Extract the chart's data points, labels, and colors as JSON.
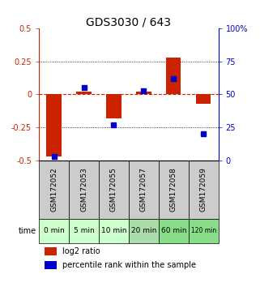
{
  "title": "GDS3030 / 643",
  "samples": [
    "GSM172052",
    "GSM172053",
    "GSM172055",
    "GSM172057",
    "GSM172058",
    "GSM172059"
  ],
  "time_labels": [
    "0 min",
    "5 min",
    "10 min",
    "20 min",
    "60 min",
    "120 min"
  ],
  "log2_ratio": [
    -0.47,
    0.02,
    -0.18,
    0.02,
    0.28,
    -0.07
  ],
  "percentile_rank": [
    3,
    55,
    27,
    53,
    62,
    20
  ],
  "ylim_left": [
    -0.5,
    0.5
  ],
  "ylim_right": [
    0,
    100
  ],
  "bar_color": "#cc2200",
  "dot_color": "#0000cc",
  "hline_color": "#cc2200",
  "title_fontsize": 10,
  "axis_left_color": "#cc2200",
  "axis_right_color": "#0000cc",
  "bg_color_gray": "#cccccc",
  "time_row_colors": [
    "#ccffcc",
    "#ccffcc",
    "#ccffcc",
    "#aaddaa",
    "#88dd88",
    "#88dd88"
  ]
}
